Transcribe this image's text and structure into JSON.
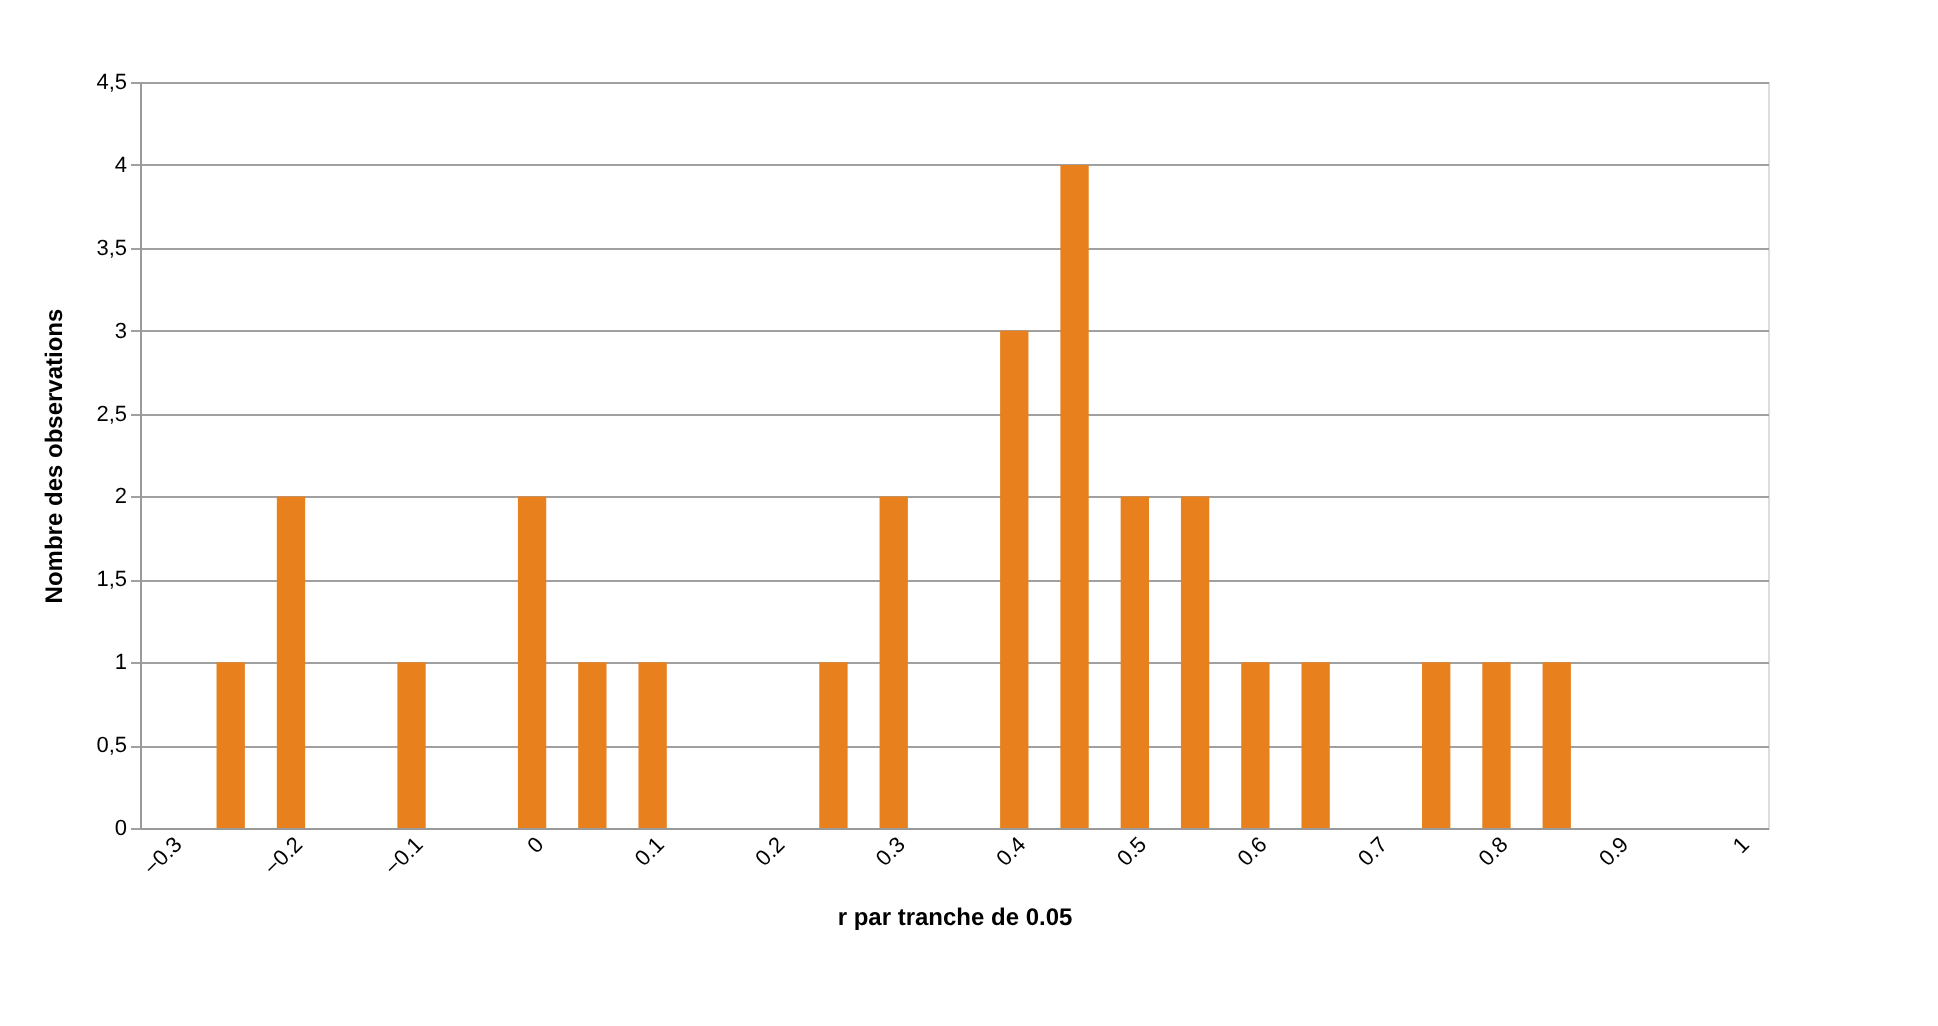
{
  "chart_data": {
    "type": "bar",
    "xlabel": "r  par tranche de 0.05",
    "ylabel": "Nombre des observations",
    "categories": [
      "−0.3",
      null,
      "−0.2",
      null,
      "−0.1",
      null,
      "0",
      null,
      "0.1",
      null,
      "0.2",
      null,
      "0.3",
      null,
      "0.4",
      null,
      "0.5",
      null,
      "0.6",
      null,
      "0.7",
      null,
      "0.8",
      null,
      "0.9",
      null,
      "1"
    ],
    "values": [
      0,
      1,
      2,
      0,
      1,
      0,
      2,
      1,
      1,
      0,
      0,
      1,
      2,
      0,
      3,
      4,
      2,
      2,
      1,
      1,
      0,
      1,
      1,
      1,
      0,
      0,
      0
    ],
    "color": "#e8801e",
    "ylim": [
      0,
      4.5
    ],
    "yticks": [
      0,
      {
        "value": 0.5,
        "label": "0,5"
      },
      1,
      {
        "value": 1.5,
        "label": "1,5"
      },
      2,
      {
        "value": 2.5,
        "label": "2,5"
      },
      3,
      {
        "value": 3.5,
        "label": "3,5"
      },
      4,
      {
        "value": 4.5,
        "label": "4,5"
      }
    ],
    "grid": "y"
  }
}
